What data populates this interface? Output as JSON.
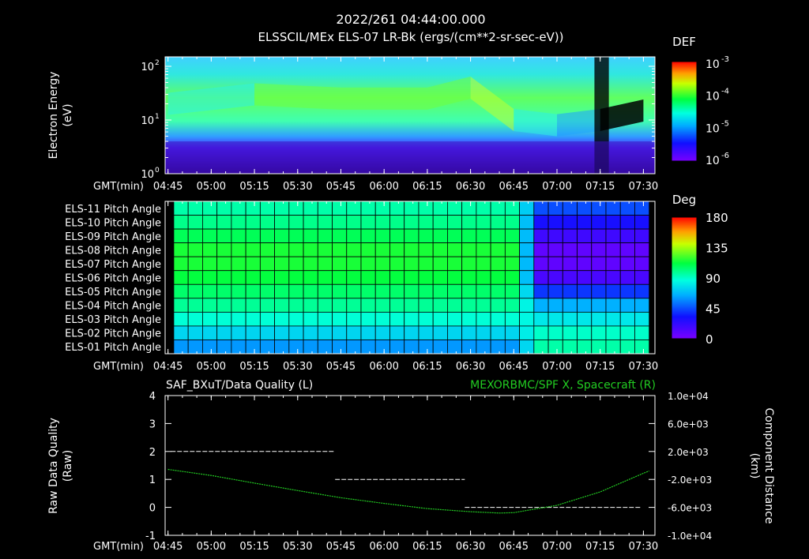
{
  "header": {
    "title": "2022/261 04:44:00.000",
    "subtitle": "ELSSCIL/MEx ELS-07 LR-Bk  (ergs/(cm**2-sr-sec-eV))"
  },
  "colors": {
    "background": "#000000",
    "axes": "#ffffff",
    "green_trace": "#22cc22",
    "white_trace": "#ffffff"
  },
  "chart_data": [
    {
      "type": "heatmap",
      "name": "energy-spectrogram",
      "ylabel_line1": "Electron Energy",
      "ylabel_line2": "(eV)",
      "xlabel": "GMT(min)",
      "x_ticks": [
        "04:45",
        "05:00",
        "05:15",
        "05:30",
        "05:45",
        "06:00",
        "06:15",
        "06:30",
        "06:45",
        "07:00",
        "07:15",
        "07:30"
      ],
      "y_scale": "log",
      "y_ticks": [
        {
          "base": "10",
          "exp": "2"
        },
        {
          "base": "10",
          "exp": "1"
        },
        {
          "base": "10",
          "exp": "0"
        }
      ],
      "ylim": [
        1,
        150
      ],
      "colorbar": {
        "title": "DEF",
        "scale": "log",
        "ticks": [
          {
            "base": "10",
            "exp": "-3"
          },
          {
            "base": "10",
            "exp": "-4"
          },
          {
            "base": "10",
            "exp": "-5"
          },
          {
            "base": "10",
            "exp": "-6"
          }
        ]
      },
      "energy_band_features": [
        {
          "time": "04:45",
          "peak_energy_ev": 20,
          "peak_level": "cyan"
        },
        {
          "time": "05:15",
          "peak_energy_ev": 30,
          "peak_level": "green"
        },
        {
          "time": "05:45",
          "peak_energy_ev": 25,
          "peak_level": "green"
        },
        {
          "time": "06:15",
          "peak_energy_ev": 25,
          "peak_level": "green"
        },
        {
          "time": "06:30",
          "peak_energy_ev": 40,
          "peak_level": "green-yellow"
        },
        {
          "time": "06:45",
          "peak_energy_ev": 10,
          "peak_level": "cyan"
        },
        {
          "time": "07:00",
          "peak_energy_ev": 8,
          "peak_level": "cyan-blue"
        },
        {
          "time": "07:15",
          "peak_energy_ev": 10,
          "peak_level": "dark gap"
        },
        {
          "time": "07:30",
          "peak_energy_ev": 15,
          "peak_level": "cyan"
        }
      ]
    },
    {
      "type": "heatmap",
      "name": "pitch-angle",
      "xlabel": "GMT(min)",
      "x_ticks": [
        "04:45",
        "05:00",
        "05:15",
        "05:30",
        "05:45",
        "06:00",
        "06:15",
        "06:30",
        "06:45",
        "07:00",
        "07:15",
        "07:30"
      ],
      "rows": [
        "ELS-11 Pitch Angle",
        "ELS-10 Pitch Angle",
        "ELS-09 Pitch Angle",
        "ELS-08 Pitch Angle",
        "ELS-07 Pitch Angle",
        "ELS-06 Pitch Angle",
        "ELS-05 Pitch Angle",
        "ELS-04 Pitch Angle",
        "ELS-03 Pitch Angle",
        "ELS-02 Pitch Angle",
        "ELS-01 Pitch Angle"
      ],
      "colorbar": {
        "title": "Deg",
        "ticks": [
          "180",
          "135",
          "90",
          "45",
          "0"
        ],
        "range": [
          0,
          180
        ]
      },
      "pitch_angle_by_segment": {
        "before_06:45": [
          95,
          100,
          108,
          115,
          115,
          112,
          105,
          98,
          88,
          75,
          60
        ],
        "after_06:50": [
          45,
          30,
          18,
          8,
          8,
          15,
          40,
          65,
          80,
          90,
          95
        ]
      }
    },
    {
      "type": "line",
      "name": "data-quality",
      "title_left": "SAF_BXuT/Data Quality (L)",
      "title_right": "MEXORBMC/SPF X, Spacecraft (R)",
      "ylabel_left_line1": "Raw Data Quality",
      "ylabel_left_line2": "(Raw)",
      "ylabel_right_line1": "Component Distance",
      "ylabel_right_line2": "(km)",
      "xlabel": "GMT(min)",
      "x_ticks": [
        "04:45",
        "05:00",
        "05:15",
        "05:30",
        "05:45",
        "06:00",
        "06:15",
        "06:30",
        "06:45",
        "07:00",
        "07:15",
        "07:30"
      ],
      "y_left_ticks": [
        "4",
        "3",
        "2",
        "1",
        "0",
        "-1"
      ],
      "ylim_left": [
        -1,
        4
      ],
      "y_right_ticks": [
        "1.0e+04",
        "6.0e+03",
        "2.0e+03",
        "-2.0e+03",
        "-6.0e+03",
        "-1.0e+04"
      ],
      "ylim_right": [
        -10000,
        10000
      ],
      "series": [
        {
          "name": "SAF_BXuT/Data Quality",
          "axis": "left",
          "segments": [
            {
              "x_start": "04:46",
              "x_end": "05:43",
              "value": 2
            },
            {
              "x_start": "05:43",
              "x_end": "06:28",
              "value": 1
            },
            {
              "x_start": "06:28",
              "x_end": "07:29",
              "value": 0
            }
          ]
        },
        {
          "name": "MEXORBMC/SPF X, Spacecraft",
          "axis": "right",
          "points": [
            [
              "04:45",
              -560
            ],
            [
              "05:00",
              -1440
            ],
            [
              "05:15",
              -2530
            ],
            [
              "05:30",
              -3590
            ],
            [
              "05:45",
              -4620
            ],
            [
              "06:00",
              -5440
            ],
            [
              "06:15",
              -6180
            ],
            [
              "06:30",
              -6620
            ],
            [
              "06:40",
              -6810
            ],
            [
              "06:45",
              -6760
            ],
            [
              "07:00",
              -5710
            ],
            [
              "07:15",
              -3790
            ],
            [
              "07:30",
              -1120
            ],
            [
              "07:32",
              -790
            ]
          ]
        }
      ]
    }
  ]
}
